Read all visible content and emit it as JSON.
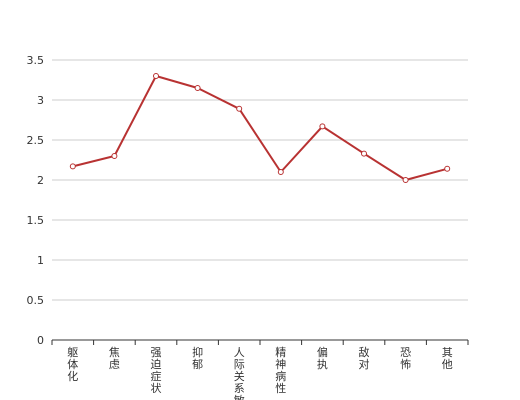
{
  "chart_data": {
    "type": "line",
    "categories": [
      "躯体化",
      "焦虑",
      "强迫症状",
      "抑郁",
      "人际关系敏感",
      "精神病性",
      "偏执",
      "敌对",
      "恐怖",
      "其他"
    ],
    "series": [
      {
        "values": [
          2.17,
          2.3,
          3.3,
          3.15,
          2.89,
          2.1,
          2.67,
          2.33,
          2.0,
          2.14
        ]
      }
    ],
    "ylim": [
      0,
      3.5
    ],
    "yticks": [
      "0",
      "0.5",
      "1",
      "1.5",
      "2",
      "2.5",
      "3",
      "3.5"
    ],
    "grid": true,
    "line_color": "#b83232",
    "grid_color": "#cccccc",
    "axis_color": "#333333"
  }
}
